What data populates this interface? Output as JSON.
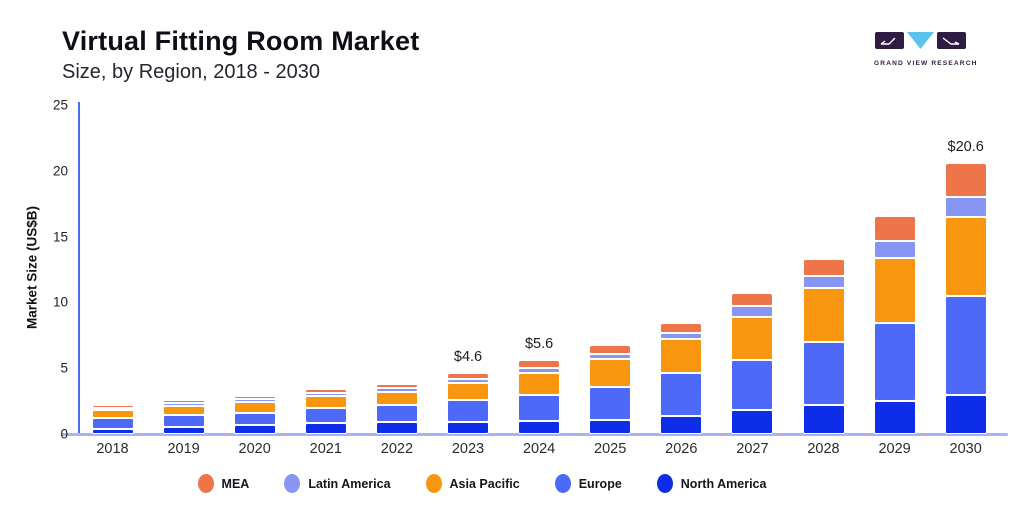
{
  "header": {
    "title": "Virtual Fitting Room Market",
    "subtitle": "Size, by Region, 2018 - 2030"
  },
  "logo": {
    "name": "Grand View Research",
    "text": "GRAND VIEW RESEARCH",
    "purple": "#2F1C42",
    "blue": "#58C3EE"
  },
  "chart_data": {
    "type": "bar",
    "stacked": true,
    "title": "Virtual Fitting Room Market",
    "subtitle": "Size, by Region, 2018 - 2030",
    "ylabel": "Market Size (US$B)",
    "xlabel": "",
    "ylim": [
      0,
      25
    ],
    "yticks": [
      0,
      5,
      10,
      15,
      20,
      25
    ],
    "grid": false,
    "legend_position": "bottom",
    "categories": [
      "2018",
      "2019",
      "2020",
      "2021",
      "2022",
      "2023",
      "2024",
      "2025",
      "2026",
      "2027",
      "2028",
      "2029",
      "2030"
    ],
    "series": [
      {
        "name": "North America",
        "color": "#0E2DE9",
        "values": [
          0.4,
          0.55,
          0.7,
          0.85,
          0.9,
          0.9,
          1.0,
          1.1,
          1.4,
          1.8,
          2.2,
          2.5,
          3.0
        ]
      },
      {
        "name": "Europe",
        "color": "#4C6AF7",
        "values": [
          0.8,
          0.9,
          0.9,
          1.1,
          1.3,
          1.7,
          2.0,
          2.5,
          3.2,
          3.8,
          4.8,
          5.9,
          7.5
        ]
      },
      {
        "name": "Asia Pacific",
        "color": "#F8970F",
        "values": [
          0.6,
          0.7,
          0.8,
          0.9,
          1.0,
          1.3,
          1.6,
          2.1,
          2.6,
          3.3,
          4.1,
          5.0,
          6.0
        ]
      },
      {
        "name": "Latin America",
        "color": "#8995F3",
        "values": [
          0.2,
          0.2,
          0.25,
          0.25,
          0.3,
          0.3,
          0.4,
          0.4,
          0.5,
          0.8,
          0.9,
          1.3,
          1.5
        ]
      },
      {
        "name": "MEA",
        "color": "#EE7449",
        "values": [
          0.2,
          0.25,
          0.25,
          0.3,
          0.3,
          0.4,
          0.6,
          0.7,
          0.7,
          1.0,
          1.3,
          1.9,
          2.6
        ]
      }
    ],
    "totals": [
      2.2,
      2.6,
      2.9,
      3.4,
      3.8,
      4.6,
      5.6,
      6.8,
      8.4,
      10.7,
      13.3,
      16.6,
      20.6
    ],
    "value_labels": {
      "2023": "$4.6",
      "2024": "$5.6",
      "2030": "$20.6"
    },
    "legend_order": [
      "MEA",
      "Latin America",
      "Asia Pacific",
      "Europe",
      "North America"
    ],
    "axis_colors": {
      "y_axis": "#4a6cf0",
      "x_axis": "#a9b2f5"
    }
  }
}
